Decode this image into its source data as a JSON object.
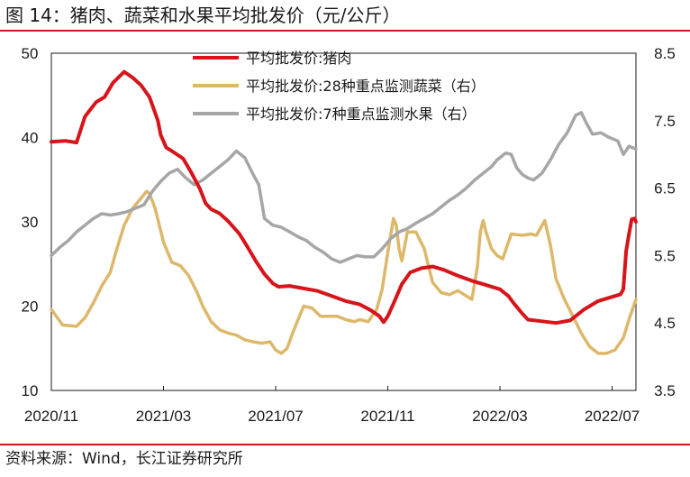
{
  "header": {
    "title": "图 14：猪肉、蔬菜和水果平均批发价（元/公斤）"
  },
  "footer": {
    "source": "资料来源：Wind，长江证券研究所"
  },
  "chart_data": {
    "type": "line",
    "title": "图 14：猪肉、蔬菜和水果平均批发价（元/公斤）",
    "xlabel": "",
    "ylabel": "",
    "x_tick_labels": [
      "2020/11",
      "2021/03",
      "2021/07",
      "2021/11",
      "2022/03",
      "2022/07"
    ],
    "x_tick_positions": [
      0,
      4,
      8,
      12,
      16,
      20
    ],
    "x_range": [
      0,
      20.85
    ],
    "left_axis": {
      "range": [
        10,
        50
      ],
      "ticks": [
        10,
        20,
        30,
        40,
        50
      ]
    },
    "right_axis": {
      "range": [
        3.5,
        8.5
      ],
      "ticks": [
        3.5,
        4.5,
        5.5,
        6.5,
        7.5,
        8.5
      ]
    },
    "grid": false,
    "legend_position": "top-center",
    "colors": {
      "pork": "#d7141a",
      "vegetables": "#deb86a",
      "fruits": "#a6a6a6",
      "accent": "#c8161d"
    },
    "series": [
      {
        "name": "平均批发价:猪肉",
        "axis": "left",
        "color": "#d7141a",
        "points": [
          [
            0,
            39.5
          ],
          [
            0.5,
            39.6
          ],
          [
            0.9,
            39.4
          ],
          [
            1.2,
            42.5
          ],
          [
            1.6,
            44.2
          ],
          [
            1.9,
            44.8
          ],
          [
            2.2,
            46.5
          ],
          [
            2.6,
            47.8
          ],
          [
            2.9,
            47.1
          ],
          [
            3.2,
            46.2
          ],
          [
            3.5,
            44.8
          ],
          [
            3.8,
            42.0
          ],
          [
            3.9,
            40.3
          ],
          [
            4.1,
            38.8
          ],
          [
            4.3,
            38.4
          ],
          [
            4.7,
            37.5
          ],
          [
            5.0,
            35.8
          ],
          [
            5.3,
            33.9
          ],
          [
            5.5,
            32.2
          ],
          [
            5.7,
            31.5
          ],
          [
            6.0,
            31.0
          ],
          [
            6.3,
            30.1
          ],
          [
            6.7,
            28.6
          ],
          [
            7.0,
            27.0
          ],
          [
            7.3,
            25.3
          ],
          [
            7.6,
            23.8
          ],
          [
            7.9,
            22.7
          ],
          [
            8.1,
            22.3
          ],
          [
            8.5,
            22.4
          ],
          [
            9.0,
            22.1
          ],
          [
            9.5,
            21.8
          ],
          [
            10.0,
            21.2
          ],
          [
            10.5,
            20.6
          ],
          [
            11.0,
            20.2
          ],
          [
            11.4,
            19.5
          ],
          [
            11.7,
            18.8
          ],
          [
            11.85,
            18.1
          ],
          [
            12.0,
            18.8
          ],
          [
            12.2,
            20.3
          ],
          [
            12.5,
            22.6
          ],
          [
            12.8,
            24.0
          ],
          [
            13.2,
            24.5
          ],
          [
            13.6,
            24.7
          ],
          [
            14.0,
            24.3
          ],
          [
            14.5,
            23.6
          ],
          [
            15.0,
            23.0
          ],
          [
            15.5,
            22.5
          ],
          [
            16.0,
            22.0
          ],
          [
            16.3,
            21.2
          ],
          [
            16.5,
            20.3
          ],
          [
            16.8,
            19.1
          ],
          [
            17.0,
            18.4
          ],
          [
            17.5,
            18.2
          ],
          [
            18.0,
            18.0
          ],
          [
            18.5,
            18.3
          ],
          [
            19.0,
            19.6
          ],
          [
            19.5,
            20.6
          ],
          [
            20.0,
            21.1
          ],
          [
            20.3,
            21.4
          ],
          [
            20.4,
            22.0
          ],
          [
            20.5,
            26.5
          ],
          [
            20.6,
            28.5
          ],
          [
            20.7,
            30.3
          ],
          [
            20.8,
            30.4
          ],
          [
            20.85,
            30.0
          ]
        ]
      },
      {
        "name": "平均批发价:28种重点监测蔬菜（右）",
        "axis": "right",
        "color": "#deb86a",
        "points": [
          [
            0,
            4.7
          ],
          [
            0.4,
            4.47
          ],
          [
            0.9,
            4.45
          ],
          [
            1.2,
            4.58
          ],
          [
            1.5,
            4.8
          ],
          [
            1.8,
            5.05
          ],
          [
            2.1,
            5.25
          ],
          [
            2.3,
            5.55
          ],
          [
            2.6,
            5.95
          ],
          [
            2.9,
            6.2
          ],
          [
            3.2,
            6.35
          ],
          [
            3.4,
            6.45
          ],
          [
            3.5,
            6.42
          ],
          [
            3.7,
            6.2
          ],
          [
            4.0,
            5.7
          ],
          [
            4.3,
            5.4
          ],
          [
            4.6,
            5.35
          ],
          [
            4.9,
            5.2
          ],
          [
            5.2,
            4.95
          ],
          [
            5.4,
            4.75
          ],
          [
            5.7,
            4.52
          ],
          [
            6.0,
            4.4
          ],
          [
            6.3,
            4.35
          ],
          [
            6.6,
            4.32
          ],
          [
            6.9,
            4.25
          ],
          [
            7.2,
            4.22
          ],
          [
            7.5,
            4.2
          ],
          [
            7.8,
            4.22
          ],
          [
            8.0,
            4.1
          ],
          [
            8.2,
            4.05
          ],
          [
            8.4,
            4.12
          ],
          [
            8.7,
            4.45
          ],
          [
            9.0,
            4.75
          ],
          [
            9.3,
            4.72
          ],
          [
            9.6,
            4.6
          ],
          [
            9.9,
            4.6
          ],
          [
            10.2,
            4.6
          ],
          [
            10.5,
            4.55
          ],
          [
            10.8,
            4.52
          ],
          [
            11.0,
            4.55
          ],
          [
            11.3,
            4.52
          ],
          [
            11.6,
            4.7
          ],
          [
            11.8,
            5.0
          ],
          [
            12.0,
            5.55
          ],
          [
            12.2,
            6.05
          ],
          [
            12.3,
            5.95
          ],
          [
            12.4,
            5.6
          ],
          [
            12.5,
            5.42
          ],
          [
            12.7,
            5.85
          ],
          [
            13.0,
            5.85
          ],
          [
            13.3,
            5.6
          ],
          [
            13.6,
            5.1
          ],
          [
            13.9,
            4.95
          ],
          [
            14.2,
            4.92
          ],
          [
            14.5,
            4.98
          ],
          [
            14.8,
            4.9
          ],
          [
            15.0,
            4.85
          ],
          [
            15.2,
            5.35
          ],
          [
            15.3,
            5.85
          ],
          [
            15.4,
            6.02
          ],
          [
            15.5,
            5.85
          ],
          [
            15.7,
            5.6
          ],
          [
            15.9,
            5.5
          ],
          [
            16.1,
            5.45
          ],
          [
            16.4,
            5.82
          ],
          [
            16.8,
            5.8
          ],
          [
            17.1,
            5.82
          ],
          [
            17.3,
            5.8
          ],
          [
            17.6,
            6.02
          ],
          [
            17.8,
            5.65
          ],
          [
            18.0,
            5.15
          ],
          [
            18.3,
            4.85
          ],
          [
            18.6,
            4.6
          ],
          [
            18.9,
            4.35
          ],
          [
            19.2,
            4.15
          ],
          [
            19.5,
            4.05
          ],
          [
            19.8,
            4.05
          ],
          [
            20.1,
            4.1
          ],
          [
            20.4,
            4.28
          ],
          [
            20.6,
            4.55
          ],
          [
            20.85,
            4.85
          ]
        ]
      },
      {
        "name": "平均批发价:7种重点监测水果（右）",
        "axis": "right",
        "color": "#a6a6a6",
        "points": [
          [
            0,
            5.5
          ],
          [
            0.3,
            5.62
          ],
          [
            0.6,
            5.72
          ],
          [
            0.9,
            5.85
          ],
          [
            1.2,
            5.95
          ],
          [
            1.5,
            6.05
          ],
          [
            1.8,
            6.12
          ],
          [
            2.1,
            6.1
          ],
          [
            2.4,
            6.12
          ],
          [
            2.7,
            6.15
          ],
          [
            3.0,
            6.2
          ],
          [
            3.3,
            6.25
          ],
          [
            3.6,
            6.45
          ],
          [
            3.9,
            6.6
          ],
          [
            4.2,
            6.72
          ],
          [
            4.5,
            6.78
          ],
          [
            4.8,
            6.65
          ],
          [
            5.1,
            6.55
          ],
          [
            5.4,
            6.62
          ],
          [
            5.7,
            6.72
          ],
          [
            6.0,
            6.82
          ],
          [
            6.3,
            6.92
          ],
          [
            6.6,
            7.05
          ],
          [
            6.9,
            6.95
          ],
          [
            7.2,
            6.7
          ],
          [
            7.4,
            6.55
          ],
          [
            7.6,
            6.05
          ],
          [
            7.9,
            5.95
          ],
          [
            8.2,
            5.92
          ],
          [
            8.5,
            5.85
          ],
          [
            8.8,
            5.78
          ],
          [
            9.1,
            5.72
          ],
          [
            9.4,
            5.62
          ],
          [
            9.7,
            5.55
          ],
          [
            10.0,
            5.45
          ],
          [
            10.3,
            5.4
          ],
          [
            10.6,
            5.45
          ],
          [
            10.9,
            5.5
          ],
          [
            11.2,
            5.48
          ],
          [
            11.5,
            5.48
          ],
          [
            11.8,
            5.6
          ],
          [
            12.1,
            5.75
          ],
          [
            12.4,
            5.85
          ],
          [
            12.7,
            5.9
          ],
          [
            13.0,
            5.98
          ],
          [
            13.3,
            6.05
          ],
          [
            13.6,
            6.12
          ],
          [
            13.9,
            6.22
          ],
          [
            14.2,
            6.32
          ],
          [
            14.5,
            6.4
          ],
          [
            14.8,
            6.5
          ],
          [
            15.1,
            6.62
          ],
          [
            15.4,
            6.72
          ],
          [
            15.7,
            6.82
          ],
          [
            15.9,
            6.92
          ],
          [
            16.0,
            6.95
          ],
          [
            16.2,
            7.02
          ],
          [
            16.4,
            7.0
          ],
          [
            16.6,
            6.8
          ],
          [
            16.8,
            6.7
          ],
          [
            17.0,
            6.65
          ],
          [
            17.2,
            6.62
          ],
          [
            17.5,
            6.72
          ],
          [
            17.8,
            6.92
          ],
          [
            18.1,
            7.15
          ],
          [
            18.4,
            7.32
          ],
          [
            18.7,
            7.58
          ],
          [
            18.9,
            7.62
          ],
          [
            19.1,
            7.45
          ],
          [
            19.3,
            7.3
          ],
          [
            19.6,
            7.32
          ],
          [
            19.9,
            7.25
          ],
          [
            20.2,
            7.2
          ],
          [
            20.4,
            7.0
          ],
          [
            20.6,
            7.12
          ],
          [
            20.85,
            7.08
          ]
        ]
      }
    ]
  }
}
